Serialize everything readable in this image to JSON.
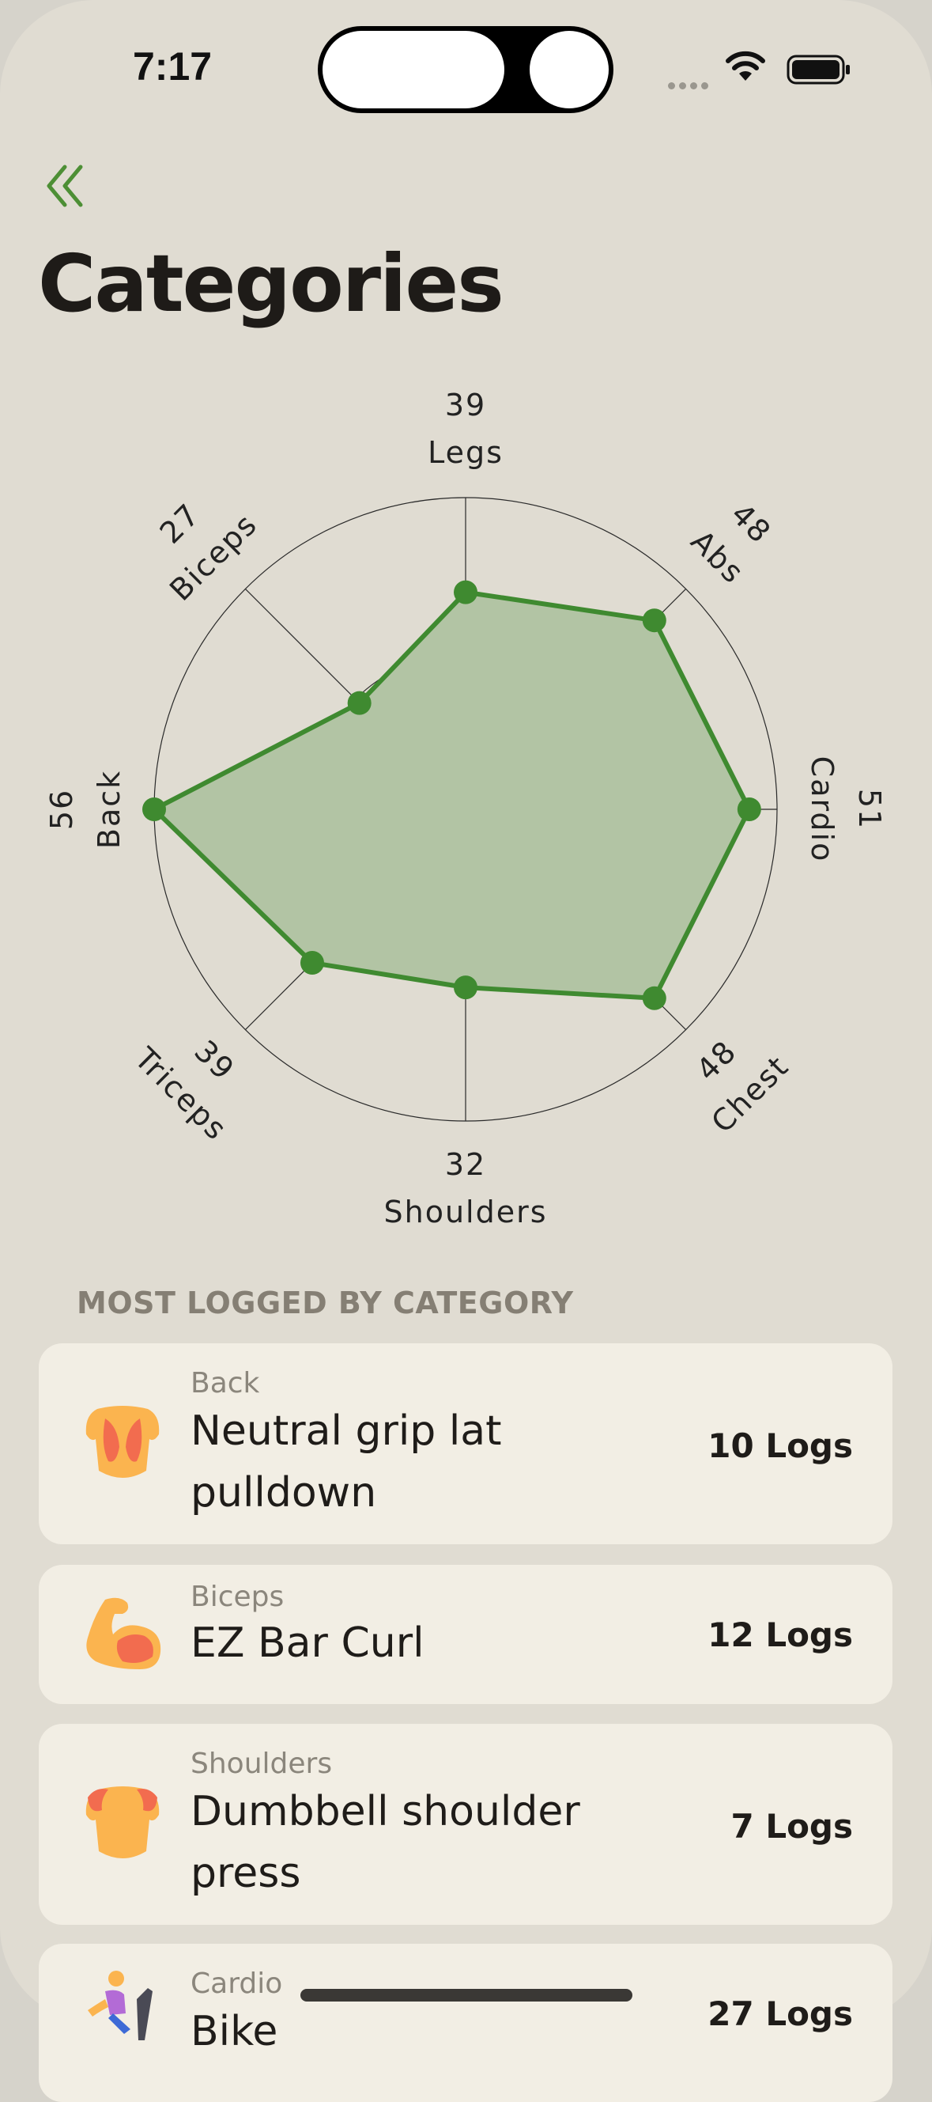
{
  "status_bar": {
    "time": "7:17"
  },
  "header": {
    "back_icon": "double-chevron-left-icon",
    "title": "Categories"
  },
  "colors": {
    "accent": "#3f8a30",
    "fill": "#b2c4a4",
    "background": "#e0dcd2",
    "card": "#f2eee4"
  },
  "chart_data": {
    "type": "radar",
    "categories": [
      "Legs",
      "Abs",
      "Cardio",
      "Chest",
      "Shoulders",
      "Triceps",
      "Back",
      "Biceps"
    ],
    "values": [
      39,
      48,
      51,
      48,
      32,
      39,
      56,
      27
    ],
    "rmax": 56,
    "series": [
      {
        "values": [
          39,
          48,
          51,
          48,
          32,
          39,
          56,
          27
        ]
      }
    ]
  },
  "section": {
    "title": "MOST LOGGED BY CATEGORY",
    "items": [
      {
        "category": "Back",
        "exercise": "Neutral grip lat pulldown",
        "logs": "10 Logs",
        "icon": "back-muscle-icon"
      },
      {
        "category": "Biceps",
        "exercise": "EZ Bar Curl",
        "logs": "12 Logs",
        "icon": "flexed-biceps-icon"
      },
      {
        "category": "Shoulders",
        "exercise": "Dumbbell shoulder press",
        "logs": "7 Logs",
        "icon": "shoulders-muscle-icon"
      },
      {
        "category": "Cardio",
        "exercise": "Bike",
        "logs": "27 Logs",
        "icon": "cardio-runner-icon"
      }
    ]
  }
}
